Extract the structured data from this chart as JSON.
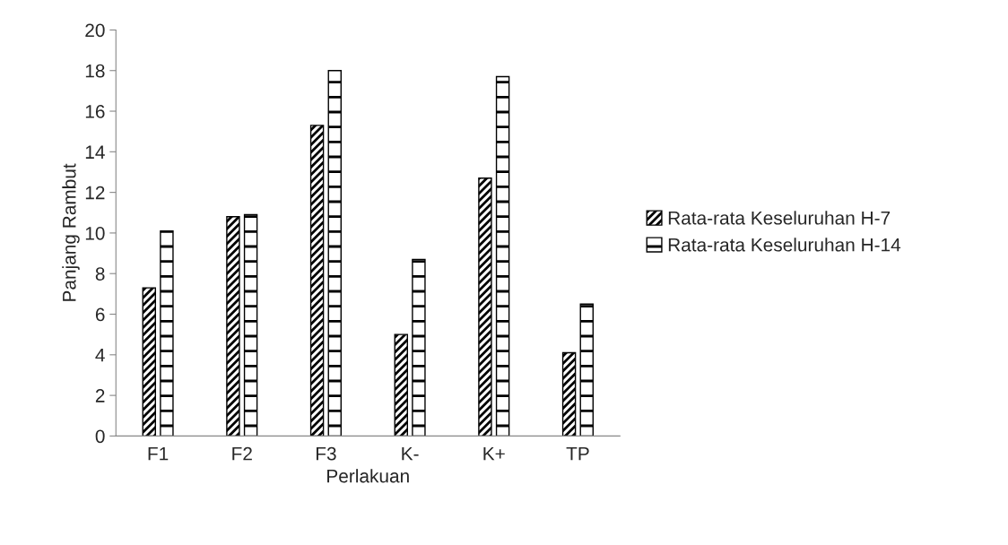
{
  "chart_data": {
    "type": "bar",
    "xlabel": "Perlakuan",
    "ylabel": "Panjang Rambut",
    "categories": [
      "F1",
      "F2",
      "F3",
      "K-",
      "K+",
      "TP"
    ],
    "series": [
      {
        "name": "Rata-rata Keseluruhan H-7",
        "color": "#000000",
        "values": [
          7.3,
          10.8,
          15.3,
          5.0,
          12.7,
          4.1
        ]
      },
      {
        "name": "Rata-rata Keseluruhan H-14",
        "color": "#000000",
        "values": [
          10.1,
          10.9,
          18.0,
          8.7,
          17.7,
          6.5
        ]
      }
    ],
    "ylim": [
      0,
      20
    ],
    "yticks": [
      0,
      2,
      4,
      6,
      8,
      10,
      12,
      14,
      16,
      18,
      20
    ],
    "grid": false,
    "legend": "right"
  }
}
